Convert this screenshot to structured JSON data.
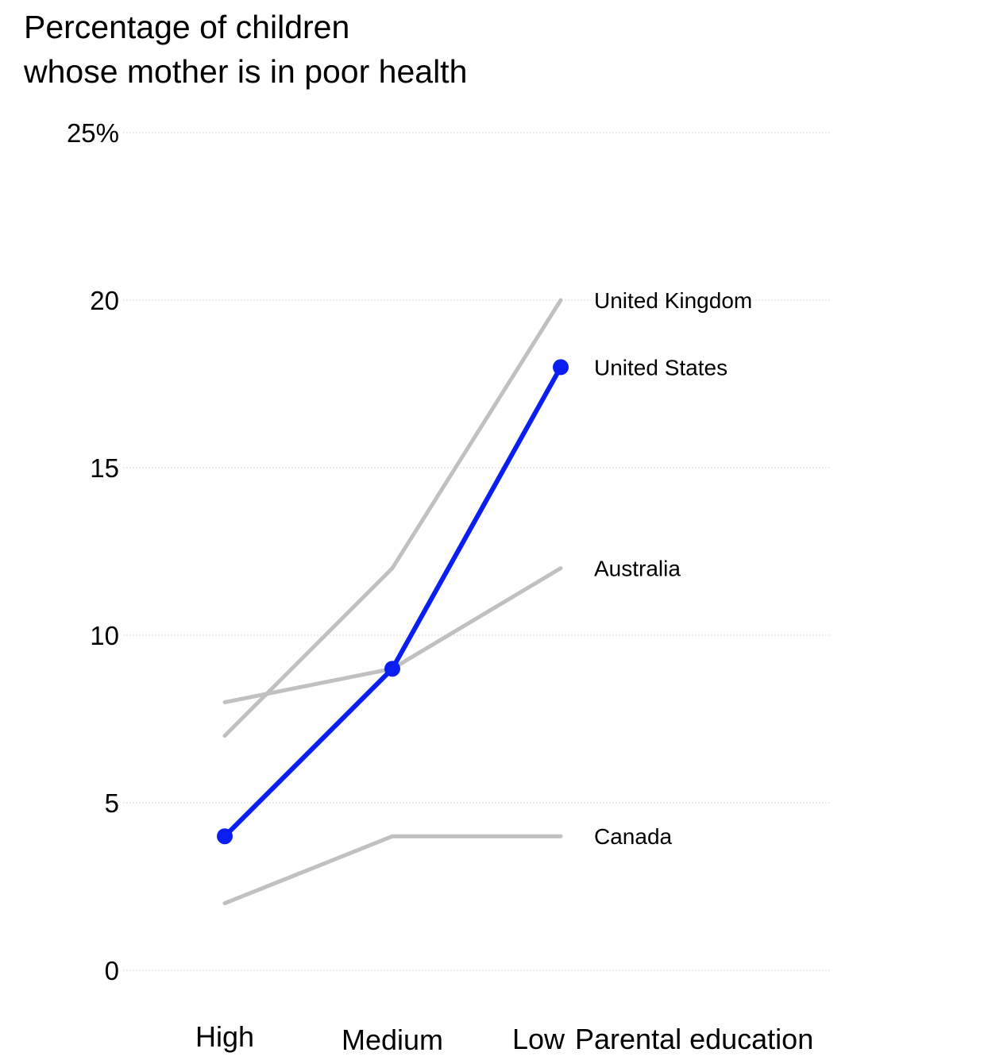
{
  "chart_data": {
    "type": "line",
    "title_lines": [
      "Percentage of children",
      "whose mother is in poor health"
    ],
    "categories": [
      "High",
      "Medium",
      "Low"
    ],
    "xlabel": "Parental education",
    "ylabel": "",
    "ylim": [
      0,
      25
    ],
    "y_ticks": [
      {
        "value": 0,
        "label": "0"
      },
      {
        "value": 5,
        "label": "5"
      },
      {
        "value": 10,
        "label": "10"
      },
      {
        "value": 15,
        "label": "15"
      },
      {
        "value": 20,
        "label": "20"
      },
      {
        "value": 25,
        "label": "25%"
      }
    ],
    "grid": "horizontal-dotted",
    "legend": "direct labels at line ends",
    "series": [
      {
        "name": "United Kingdom",
        "values": [
          7,
          12,
          20
        ],
        "highlight": false,
        "color": "#c0c0c0"
      },
      {
        "name": "Australia",
        "values": [
          8,
          9,
          12
        ],
        "highlight": false,
        "color": "#c0c0c0"
      },
      {
        "name": "Canada",
        "values": [
          2,
          4,
          4
        ],
        "highlight": false,
        "color": "#c0c0c0"
      },
      {
        "name": "United States",
        "values": [
          4,
          9,
          18
        ],
        "highlight": true,
        "color": "#0a1ef0"
      }
    ]
  }
}
